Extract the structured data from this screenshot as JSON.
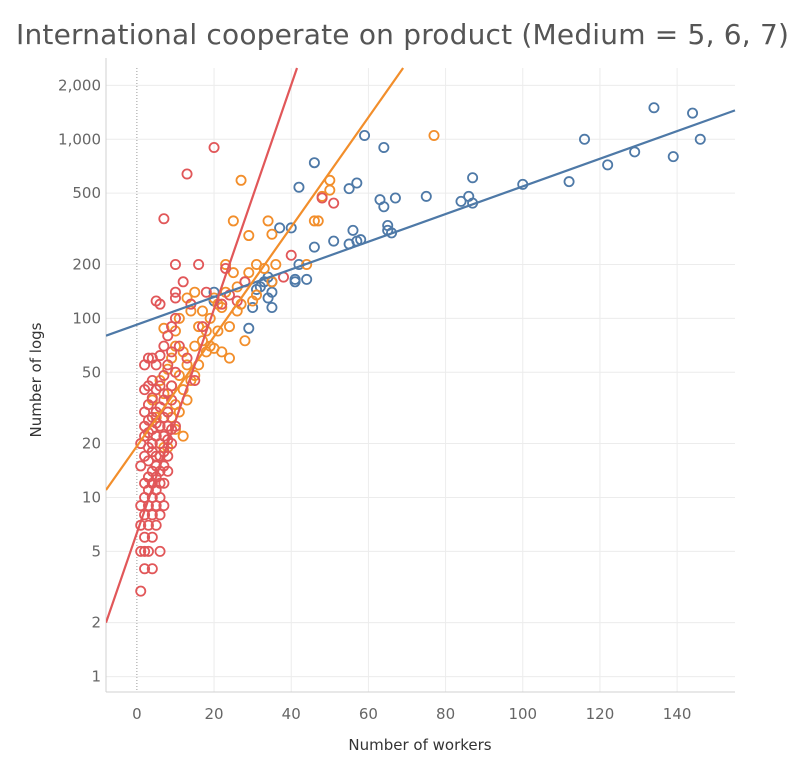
{
  "chart_data": {
    "type": "scatter",
    "title": "International cooperate on product (Medium = 5, 6, 7)",
    "xlabel": "Number of workers",
    "ylabel": "Number of logs",
    "xlim": [
      -8,
      155
    ],
    "ylim": [
      0.82,
      2500
    ],
    "y_scale": "log",
    "x_ticks": [
      0,
      20,
      40,
      60,
      80,
      100,
      120,
      140
    ],
    "y_ticks": [
      1,
      2,
      5,
      10,
      20,
      50,
      100,
      200,
      500,
      1000,
      2000
    ],
    "y_tick_labels": [
      "1",
      "2",
      "5",
      "10",
      "20",
      "50",
      "100",
      "200",
      "500",
      "1,000",
      "2,000"
    ],
    "grid": true,
    "series": [
      {
        "color": "#4e79a7",
        "marker": "open-circle",
        "trendline": {
          "x": [
            -8,
            155
          ],
          "y": [
            80,
            1450
          ]
        },
        "points": [
          [
            20,
            140
          ],
          [
            20,
            125
          ],
          [
            30,
            115
          ],
          [
            31,
            145
          ],
          [
            32,
            150
          ],
          [
            33,
            160
          ],
          [
            34,
            130
          ],
          [
            34,
            170
          ],
          [
            35,
            115
          ],
          [
            35,
            160
          ],
          [
            35,
            140
          ],
          [
            29,
            88
          ],
          [
            37,
            320
          ],
          [
            40,
            320
          ],
          [
            41,
            160
          ],
          [
            41,
            165
          ],
          [
            42,
            200
          ],
          [
            44,
            165
          ],
          [
            46,
            250
          ],
          [
            42,
            540
          ],
          [
            46,
            740
          ],
          [
            51,
            270
          ],
          [
            55,
            260
          ],
          [
            56,
            310
          ],
          [
            57,
            270
          ],
          [
            58,
            275
          ],
          [
            55,
            530
          ],
          [
            57,
            570
          ],
          [
            59,
            1050
          ],
          [
            63,
            460
          ],
          [
            64,
            420
          ],
          [
            65,
            310
          ],
          [
            65,
            330
          ],
          [
            66,
            300
          ],
          [
            67,
            470
          ],
          [
            64,
            900
          ],
          [
            75,
            480
          ],
          [
            84,
            450
          ],
          [
            86,
            480
          ],
          [
            87,
            440
          ],
          [
            87,
            610
          ],
          [
            100,
            560
          ],
          [
            112,
            580
          ],
          [
            116,
            1000
          ],
          [
            122,
            720
          ],
          [
            129,
            850
          ],
          [
            134,
            1500
          ],
          [
            139,
            800
          ],
          [
            144,
            1400
          ],
          [
            146,
            1000
          ]
        ]
      },
      {
        "color": "#f28e2b",
        "marker": "open-circle",
        "trendline": {
          "x": [
            -8,
            69
          ],
          "y": [
            11,
            2500
          ]
        },
        "points": [
          [
            4,
            35
          ],
          [
            4,
            18
          ],
          [
            5,
            28
          ],
          [
            5,
            22
          ],
          [
            6,
            45
          ],
          [
            6,
            32
          ],
          [
            6,
            25
          ],
          [
            6,
            17
          ],
          [
            7,
            38
          ],
          [
            7,
            19
          ],
          [
            7,
            88
          ],
          [
            8,
            30
          ],
          [
            8,
            52
          ],
          [
            8,
            19
          ],
          [
            9,
            42
          ],
          [
            9,
            60
          ],
          [
            9,
            28
          ],
          [
            10,
            33
          ],
          [
            10,
            70
          ],
          [
            10,
            24
          ],
          [
            10,
            85
          ],
          [
            11,
            48
          ],
          [
            11,
            30
          ],
          [
            11,
            100
          ],
          [
            12,
            40
          ],
          [
            12,
            65
          ],
          [
            12,
            22
          ],
          [
            13,
            35
          ],
          [
            13,
            130
          ],
          [
            13,
            55
          ],
          [
            14,
            110
          ],
          [
            14,
            45
          ],
          [
            15,
            70
          ],
          [
            15,
            140
          ],
          [
            15,
            48
          ],
          [
            16,
            55
          ],
          [
            16,
            90
          ],
          [
            17,
            75
          ],
          [
            17,
            110
          ],
          [
            18,
            85
          ],
          [
            18,
            65
          ],
          [
            19,
            100
          ],
          [
            19,
            70
          ],
          [
            20,
            130
          ],
          [
            20,
            68
          ],
          [
            21,
            85
          ],
          [
            21,
            120
          ],
          [
            22,
            65
          ],
          [
            22,
            115
          ],
          [
            23,
            200
          ],
          [
            23,
            140
          ],
          [
            24,
            90
          ],
          [
            24,
            60
          ],
          [
            25,
            180
          ],
          [
            25,
            350
          ],
          [
            26,
            110
          ],
          [
            26,
            150
          ],
          [
            27,
            590
          ],
          [
            27,
            120
          ],
          [
            28,
            160
          ],
          [
            28,
            75
          ],
          [
            29,
            180
          ],
          [
            29,
            290
          ],
          [
            30,
            125
          ],
          [
            31,
            200
          ],
          [
            31,
            135
          ],
          [
            33,
            190
          ],
          [
            34,
            350
          ],
          [
            35,
            295
          ],
          [
            35,
            160
          ],
          [
            36,
            200
          ],
          [
            44,
            200
          ],
          [
            46,
            350
          ],
          [
            47,
            350
          ],
          [
            48,
            480
          ],
          [
            50,
            590
          ],
          [
            50,
            520
          ],
          [
            77,
            1050
          ]
        ]
      },
      {
        "color": "#e15759",
        "marker": "open-circle",
        "trendline": {
          "x": [
            -8,
            41.5
          ],
          "y": [
            2,
            2500
          ]
        },
        "points": [
          [
            1,
            3
          ],
          [
            1,
            5
          ],
          [
            1,
            7
          ],
          [
            1,
            9
          ],
          [
            1,
            15
          ],
          [
            1,
            20
          ],
          [
            2,
            4
          ],
          [
            2,
            5
          ],
          [
            2,
            6
          ],
          [
            2,
            8
          ],
          [
            2,
            10
          ],
          [
            2,
            12
          ],
          [
            2,
            17
          ],
          [
            2,
            22
          ],
          [
            2,
            25
          ],
          [
            2,
            30
          ],
          [
            2,
            40
          ],
          [
            2,
            55
          ],
          [
            3,
            5
          ],
          [
            3,
            7
          ],
          [
            3,
            9
          ],
          [
            3,
            11
          ],
          [
            3,
            13
          ],
          [
            3,
            16
          ],
          [
            3,
            19
          ],
          [
            3,
            23
          ],
          [
            3,
            27
          ],
          [
            3,
            33
          ],
          [
            3,
            42
          ],
          [
            3,
            60
          ],
          [
            4,
            4
          ],
          [
            4,
            6
          ],
          [
            4,
            8
          ],
          [
            4,
            10
          ],
          [
            4,
            12
          ],
          [
            4,
            14
          ],
          [
            4,
            18
          ],
          [
            4,
            20
          ],
          [
            4,
            24
          ],
          [
            4,
            28
          ],
          [
            4,
            36
          ],
          [
            4,
            45
          ],
          [
            4,
            60
          ],
          [
            5,
            7
          ],
          [
            5,
            9
          ],
          [
            5,
            11
          ],
          [
            5,
            13
          ],
          [
            5,
            15
          ],
          [
            5,
            17
          ],
          [
            5,
            22
          ],
          [
            5,
            26
          ],
          [
            5,
            30
          ],
          [
            5,
            40
          ],
          [
            5,
            55
          ],
          [
            5,
            125
          ],
          [
            6,
            5
          ],
          [
            6,
            8
          ],
          [
            6,
            10
          ],
          [
            6,
            12
          ],
          [
            6,
            14
          ],
          [
            6,
            17
          ],
          [
            6,
            20
          ],
          [
            6,
            25
          ],
          [
            6,
            32
          ],
          [
            6,
            42
          ],
          [
            6,
            62
          ],
          [
            6,
            120
          ],
          [
            7,
            9
          ],
          [
            7,
            12
          ],
          [
            7,
            15
          ],
          [
            7,
            18
          ],
          [
            7,
            22
          ],
          [
            7,
            28
          ],
          [
            7,
            35
          ],
          [
            7,
            48
          ],
          [
            7,
            70
          ],
          [
            7,
            360
          ],
          [
            8,
            14
          ],
          [
            8,
            17
          ],
          [
            8,
            21
          ],
          [
            8,
            25
          ],
          [
            8,
            30
          ],
          [
            8,
            38
          ],
          [
            8,
            55
          ],
          [
            8,
            80
          ],
          [
            9,
            20
          ],
          [
            9,
            24
          ],
          [
            9,
            35
          ],
          [
            9,
            42
          ],
          [
            9,
            65
          ],
          [
            9,
            90
          ],
          [
            10,
            25
          ],
          [
            10,
            50
          ],
          [
            10,
            100
          ],
          [
            10,
            140
          ],
          [
            10,
            200
          ],
          [
            10,
            130
          ],
          [
            11,
            70
          ],
          [
            12,
            160
          ],
          [
            13,
            640
          ],
          [
            13,
            60
          ],
          [
            14,
            120
          ],
          [
            15,
            45
          ],
          [
            16,
            200
          ],
          [
            17,
            90
          ],
          [
            18,
            140
          ],
          [
            20,
            900
          ],
          [
            22,
            120
          ],
          [
            23,
            190
          ],
          [
            24,
            135
          ],
          [
            26,
            125
          ],
          [
            28,
            160
          ],
          [
            38,
            170
          ],
          [
            40,
            225
          ],
          [
            48,
            470
          ],
          [
            51,
            440
          ]
        ]
      }
    ]
  }
}
